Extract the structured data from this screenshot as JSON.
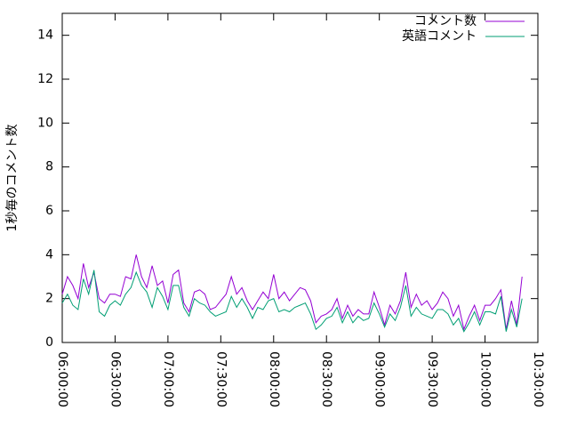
{
  "chart_data": {
    "type": "line",
    "ylabel": "1秒毎のコメント数",
    "x": [
      "06:00:00",
      "06:03:00",
      "06:06:00",
      "06:09:00",
      "06:12:00",
      "06:15:00",
      "06:18:00",
      "06:21:00",
      "06:24:00",
      "06:27:00",
      "06:30:00",
      "06:33:00",
      "06:36:00",
      "06:39:00",
      "06:42:00",
      "06:45:00",
      "06:48:00",
      "06:51:00",
      "06:54:00",
      "06:57:00",
      "07:00:00",
      "07:03:00",
      "07:06:00",
      "07:09:00",
      "07:12:00",
      "07:15:00",
      "07:18:00",
      "07:21:00",
      "07:24:00",
      "07:27:00",
      "07:30:00",
      "07:33:00",
      "07:36:00",
      "07:39:00",
      "07:42:00",
      "07:45:00",
      "07:48:00",
      "07:51:00",
      "07:54:00",
      "07:57:00",
      "08:00:00",
      "08:03:00",
      "08:06:00",
      "08:09:00",
      "08:12:00",
      "08:15:00",
      "08:18:00",
      "08:21:00",
      "08:24:00",
      "08:27:00",
      "08:30:00",
      "08:33:00",
      "08:36:00",
      "08:39:00",
      "08:42:00",
      "08:45:00",
      "08:48:00",
      "08:51:00",
      "08:54:00",
      "08:57:00",
      "09:00:00",
      "09:03:00",
      "09:06:00",
      "09:09:00",
      "09:12:00",
      "09:15:00",
      "09:18:00",
      "09:21:00",
      "09:24:00",
      "09:27:00",
      "09:30:00",
      "09:33:00",
      "09:36:00",
      "09:39:00",
      "09:42:00",
      "09:45:00",
      "09:48:00",
      "09:51:00",
      "09:54:00",
      "09:57:00",
      "10:00:00",
      "10:03:00",
      "10:06:00",
      "10:09:00",
      "10:12:00",
      "10:15:00",
      "10:18:00",
      "10:21:00"
    ],
    "series": [
      {
        "name": "コメント数",
        "color": "#9400d3",
        "values": [
          2.2,
          3.0,
          2.6,
          2.0,
          3.6,
          2.5,
          3.2,
          2.0,
          1.8,
          2.2,
          2.2,
          2.1,
          3.0,
          2.9,
          4.0,
          3.0,
          2.5,
          3.5,
          2.6,
          2.8,
          1.8,
          3.1,
          3.3,
          1.8,
          1.4,
          2.3,
          2.4,
          2.2,
          1.5,
          1.6,
          1.9,
          2.2,
          3.0,
          2.2,
          2.5,
          1.9,
          1.5,
          1.9,
          2.3,
          2.0,
          3.1,
          2.0,
          2.3,
          1.9,
          2.2,
          2.5,
          2.4,
          1.9,
          0.9,
          1.2,
          1.3,
          1.5,
          2.0,
          1.1,
          1.7,
          1.2,
          1.5,
          1.3,
          1.3,
          2.3,
          1.6,
          0.8,
          1.7,
          1.3,
          1.9,
          3.2,
          1.6,
          2.2,
          1.7,
          1.9,
          1.5,
          1.8,
          2.3,
          2.0,
          1.2,
          1.7,
          0.6,
          1.2,
          1.7,
          1.0,
          1.7,
          1.7,
          2.0,
          2.4,
          0.6,
          1.9,
          0.8,
          3.0
        ]
      },
      {
        "name": "英語コメント",
        "color": "#009e73",
        "values": [
          1.8,
          2.2,
          1.7,
          1.5,
          2.9,
          2.2,
          3.3,
          1.4,
          1.2,
          1.7,
          1.9,
          1.7,
          2.2,
          2.5,
          3.2,
          2.6,
          2.3,
          1.6,
          2.5,
          2.1,
          1.5,
          2.6,
          2.6,
          1.6,
          1.2,
          2.0,
          1.8,
          1.7,
          1.4,
          1.2,
          1.3,
          1.4,
          2.1,
          1.6,
          2.0,
          1.6,
          1.1,
          1.6,
          1.5,
          1.9,
          2.0,
          1.4,
          1.5,
          1.4,
          1.6,
          1.7,
          1.8,
          1.3,
          0.6,
          0.8,
          1.1,
          1.2,
          1.6,
          0.9,
          1.4,
          0.9,
          1.2,
          1.0,
          1.1,
          1.8,
          1.3,
          0.7,
          1.3,
          1.0,
          1.6,
          2.6,
          1.2,
          1.6,
          1.3,
          1.2,
          1.1,
          1.5,
          1.5,
          1.3,
          0.8,
          1.1,
          0.5,
          0.9,
          1.4,
          0.8,
          1.4,
          1.4,
          1.3,
          2.1,
          0.5,
          1.5,
          0.7,
          2.0
        ]
      }
    ],
    "xlim": [
      "06:00:00",
      "10:30:00"
    ],
    "xticks": [
      "06:00:00",
      "06:30:00",
      "07:00:00",
      "07:30:00",
      "08:00:00",
      "08:30:00",
      "09:00:00",
      "09:30:00",
      "10:00:00",
      "10:30:00"
    ],
    "ylim": [
      0,
      15
    ],
    "yticks": [
      0,
      2,
      4,
      6,
      8,
      10,
      12,
      14
    ],
    "legend": "top-right"
  }
}
